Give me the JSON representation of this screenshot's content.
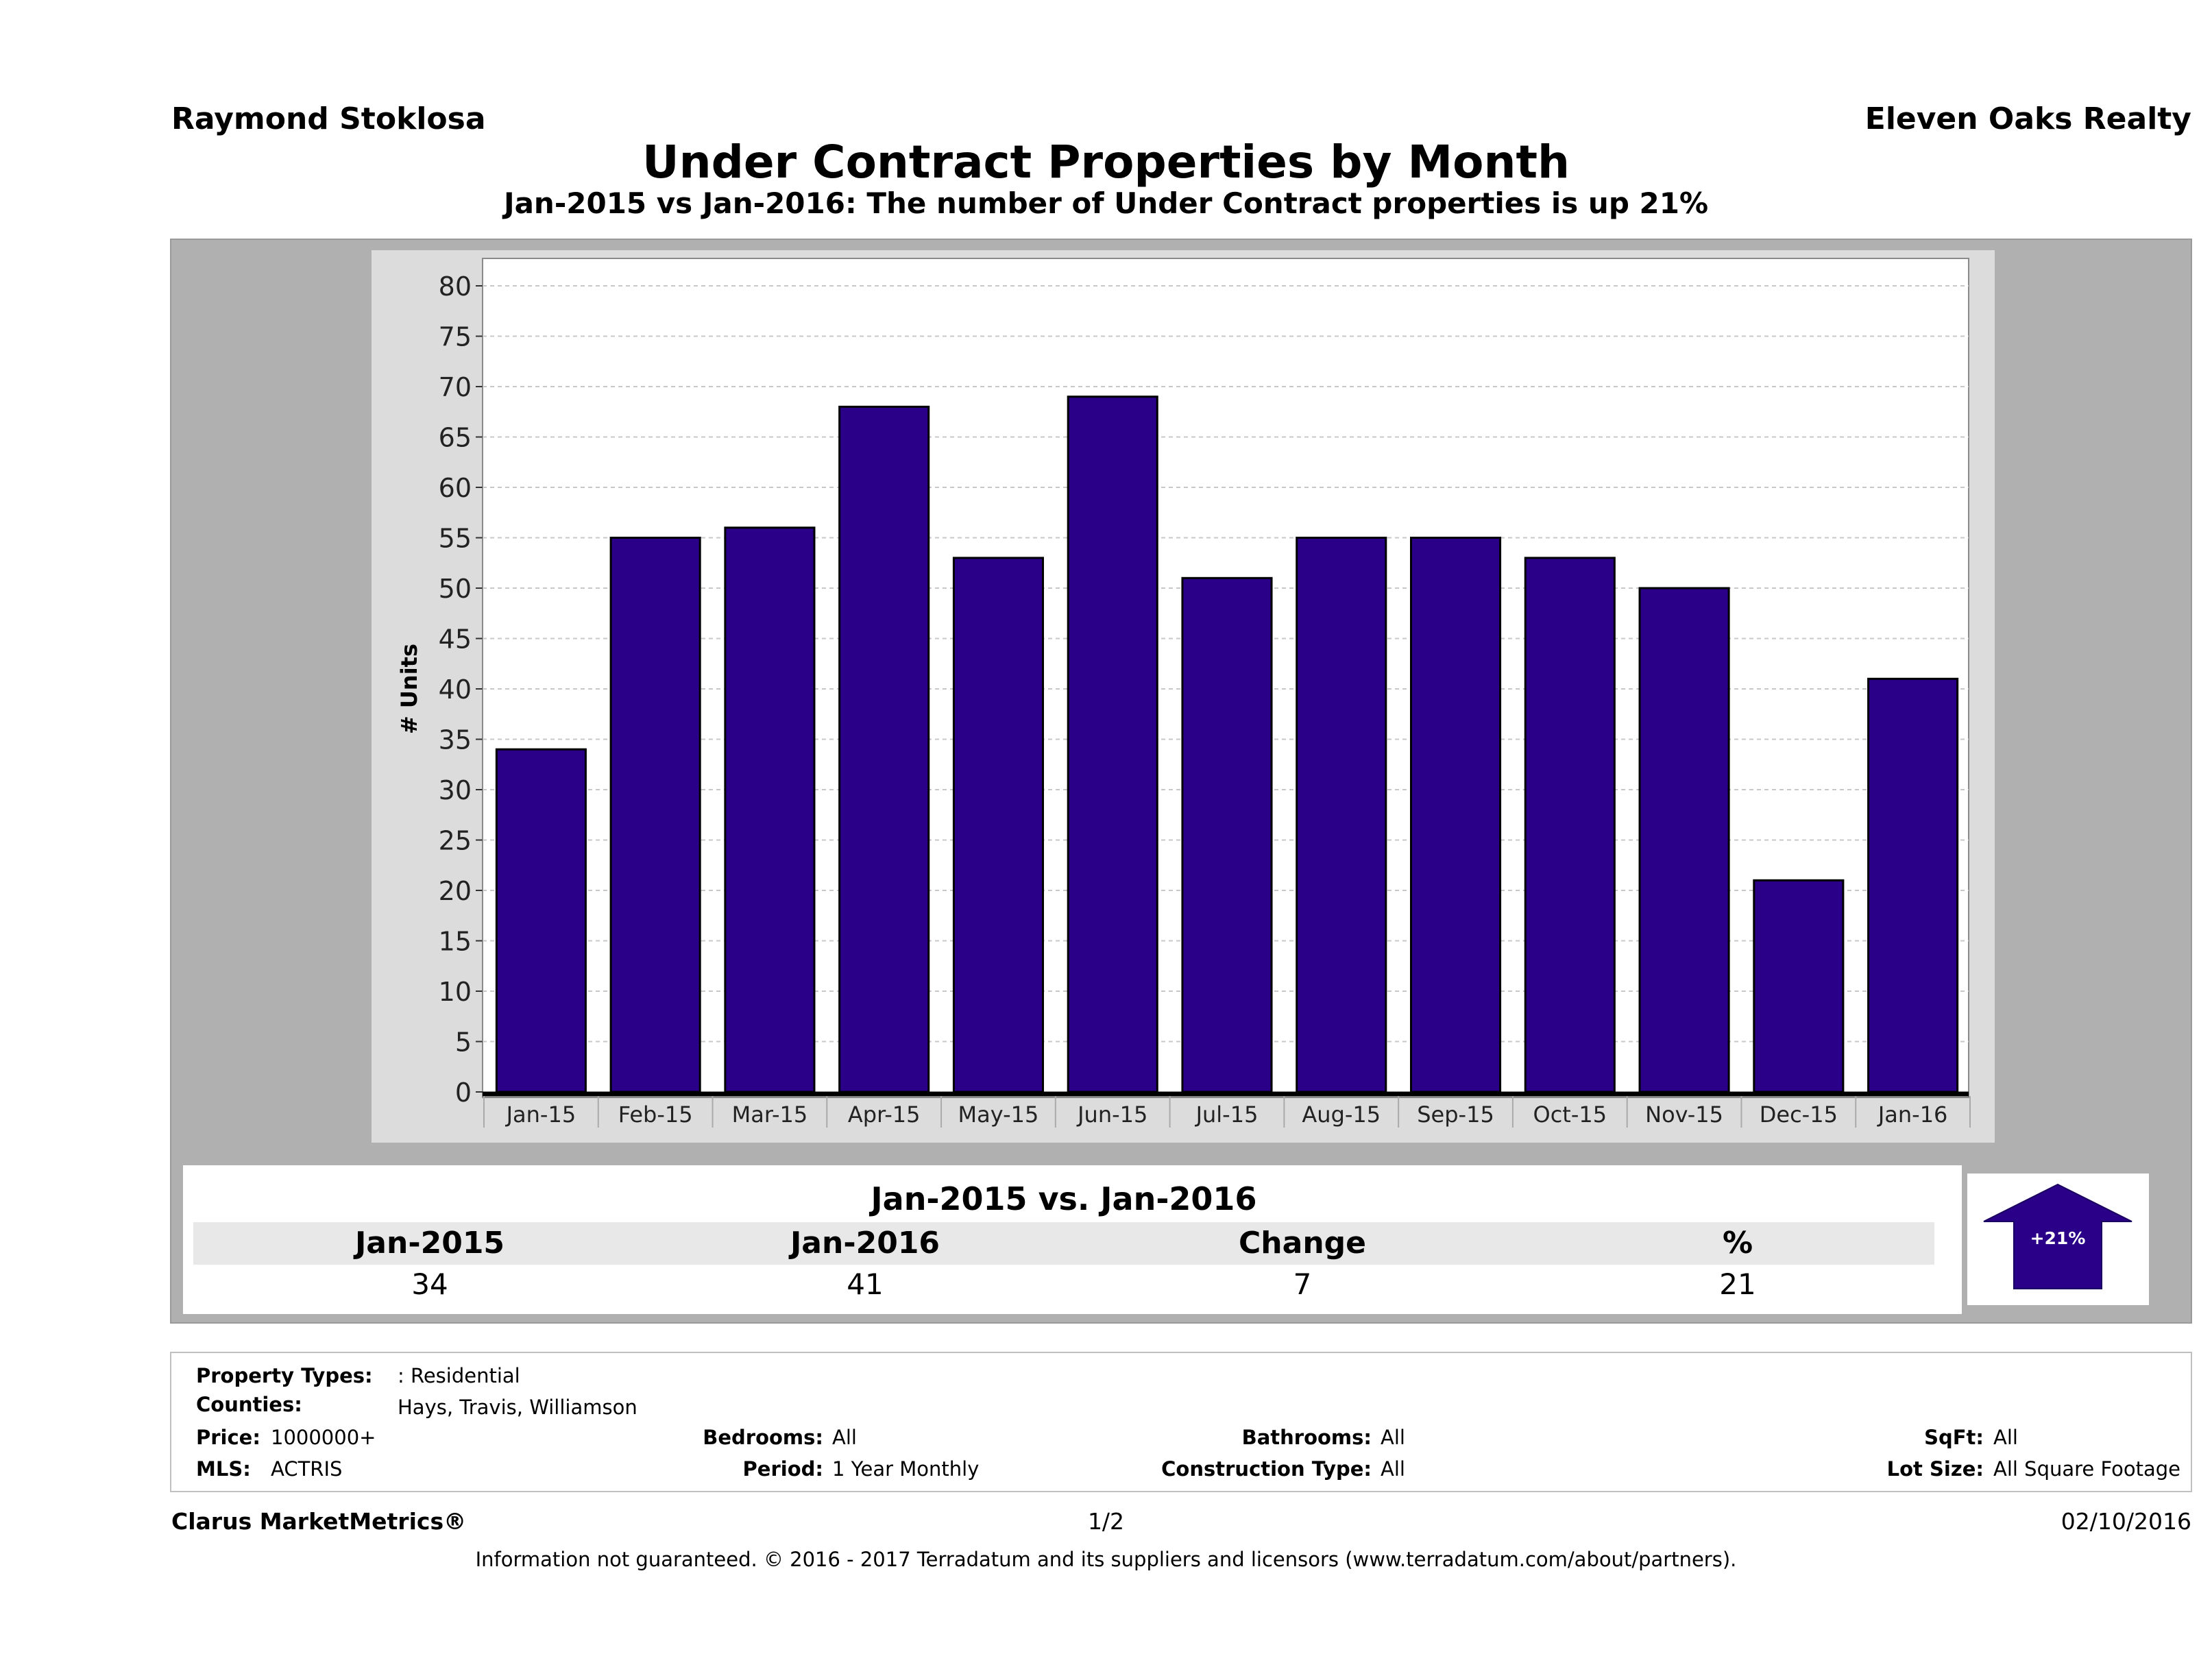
{
  "header": {
    "agent_name": "Raymond Stoklosa",
    "brokerage": "Eleven Oaks Realty"
  },
  "colors": {
    "bar_fill": "#2a0088",
    "bar_stroke": "#000000",
    "panel_gray": "#b0b0b0",
    "chart_bg": "#dcdcdc",
    "arrow_fill": "#2a0088"
  },
  "chart_data": {
    "type": "bar",
    "title": "Under Contract Properties by Month",
    "subtitle": "Jan-2015 vs Jan-2016: The number of Under Contract  properties is up 21%",
    "xlabel": "",
    "ylabel": "# Units",
    "ylim": [
      0,
      80
    ],
    "yticks": [
      0,
      5,
      10,
      15,
      20,
      25,
      30,
      35,
      40,
      45,
      50,
      55,
      60,
      65,
      70,
      75,
      80
    ],
    "grid": true,
    "categories": [
      "Jan-15",
      "Feb-15",
      "Mar-15",
      "Apr-15",
      "May-15",
      "Jun-15",
      "Jul-15",
      "Aug-15",
      "Sep-15",
      "Oct-15",
      "Nov-15",
      "Dec-15",
      "Jan-16"
    ],
    "values": [
      34,
      55,
      56,
      68,
      53,
      69,
      51,
      55,
      55,
      53,
      50,
      21,
      41
    ]
  },
  "comparison": {
    "heading": "Jan-2015 vs. Jan-2016",
    "col_headers": [
      "Jan-2015",
      "Jan-2016",
      "Change",
      "%"
    ],
    "col_values": [
      "34",
      "41",
      "7",
      "21"
    ],
    "arrow_label": "+21%"
  },
  "criteria": {
    "property_types_label": "Property Types:",
    "property_types_value": ": Residential",
    "counties_label": "Counties:",
    "counties_value": "Hays, Travis, Williamson",
    "price_label": "Price:",
    "price_value": "1000000+",
    "mls_label": "MLS:",
    "mls_value": "ACTRIS",
    "bedrooms_label": "Bedrooms:",
    "bedrooms_value": "All",
    "period_label": "Period:",
    "period_value": "1 Year Monthly",
    "bathrooms_label": "Bathrooms:",
    "bathrooms_value": "All",
    "construction_label": "Construction Type:",
    "construction_value": "All",
    "sqft_label": "SqFt:",
    "sqft_value": "All",
    "lot_size_label": "Lot Size:",
    "lot_size_value": "All Square Footage"
  },
  "footer": {
    "brand": "Clarus MarketMetrics®",
    "page": "1/2",
    "date": "02/10/2016",
    "disclaimer": "Information not guaranteed. © 2016 - 2017 Terradatum and its suppliers and licensors (www.terradatum.com/about/partners)."
  }
}
